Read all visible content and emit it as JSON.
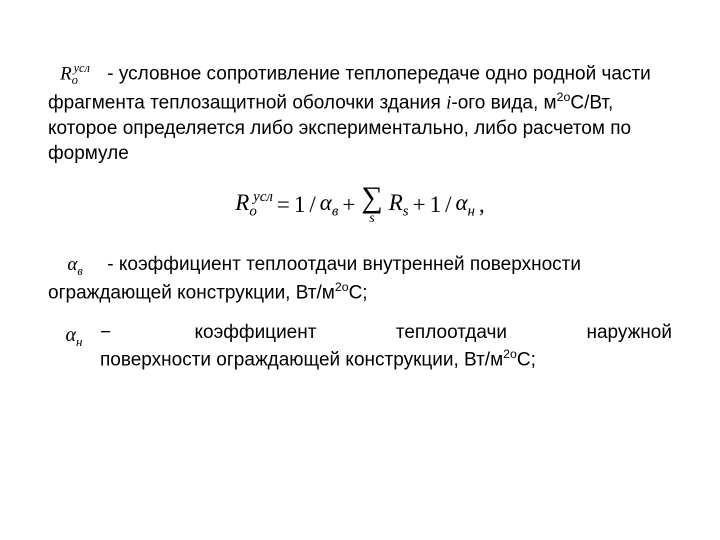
{
  "colors": {
    "background": "#ffffff",
    "text": "#000000"
  },
  "typography": {
    "body_family": "Arial",
    "body_size_pt": 14,
    "math_family": "Times New Roman",
    "equation_size_pt": 17
  },
  "symbols": {
    "R0_usn_html": "R<sub>o</sub><sup>усл</sup>",
    "alpha_v_html": "α<sub>в</sub>",
    "alpha_n_html": "α<sub>н</sub>"
  },
  "paragraph1": {
    "lead_dash": " - ",
    "text_a": "условное сопротивление теплопередаче одно родной части фрагмента теплозащитной оболочки здания ",
    "i_letter": "i",
    "text_b": "-ого вида, м",
    "unit_sup": "2о",
    "text_c": "С/Вт, которое определяется либо экспериментально, либо расчетом по формуле"
  },
  "equation": {
    "lhs_html": "R<sub>o</sub><sup>усл</sup>",
    "eq": " = ",
    "term1_html": "1/α<sub>в</sub>",
    "plus": " + ",
    "sum_sigma": "∑",
    "sum_sub": "s",
    "sum_body_html": "R<sub>s</sub>",
    "term3_html": "1/α<sub>н</sub>",
    "tail": ","
  },
  "def_alpha_v": {
    "dash": " - ",
    "text_a": "коэффициент теплоотдачи внутренней поверхности ограждающей конструкции, Вт/м",
    "unit_sup": "2о",
    "text_b": "С;"
  },
  "def_alpha_n": {
    "dash": " − ",
    "line1_a": "коэффициент",
    "line1_b": "теплоотдачи",
    "line1_c": "наружной",
    "line2_a": "поверхности ограждающей конструкции, Вт/м",
    "unit_sup": "2о",
    "line2_b": "С;"
  }
}
